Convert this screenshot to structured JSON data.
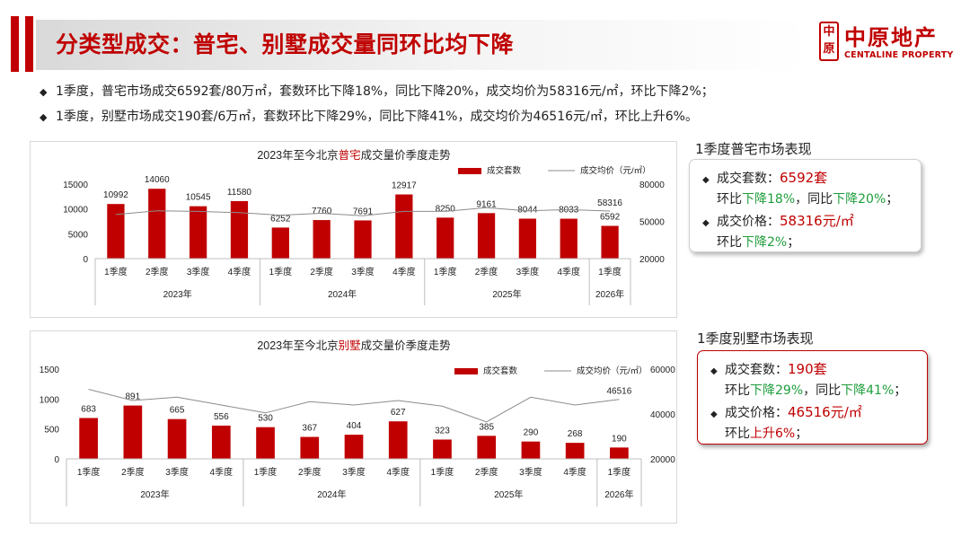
{
  "title": "分类型成交：普宅、别墅成交量同环比均下降",
  "logo": {
    "mark_top": "中",
    "mark_bottom": "原",
    "cn": "中原地产",
    "en": "CENTALINE PROPERTY"
  },
  "bullets": [
    "1季度，普宅市场成交6592套/80万㎡，套数环比下降18%，同比下降20%，成交均价为58316元/㎡，环比下降2%；",
    "1季度，别墅市场成交190套/6万㎡，套数环比下降29%，同比下降41%，成交均价为46516元/㎡，环比上升6%。"
  ],
  "colors": {
    "bar": "#c00000",
    "line": "#8c8c8c",
    "accent": "#c00000",
    "green": "#1e9e3c"
  },
  "panels": {
    "residential": {
      "heading": "1季度普宅市场表现",
      "vol_label": "成交套数：",
      "vol_value": "6592套",
      "vol_chg_a": "环比",
      "vol_chg_a_val": "下降18%",
      "vol_chg_b": "，同比",
      "vol_chg_b_val": "下降20%",
      "vol_chg_end": "；",
      "price_label": "成交价格：",
      "price_value": "58316元/㎡",
      "price_chg": "环比",
      "price_chg_val": "下降2%",
      "price_chg_end": "；"
    },
    "villa": {
      "heading": "1季度别墅市场表现",
      "vol_label": "成交套数：",
      "vol_value": "190套",
      "vol_chg_a": "环比",
      "vol_chg_a_val": "下降29%",
      "vol_chg_b": "，同比",
      "vol_chg_b_val": "下降41%",
      "vol_chg_end": "；",
      "price_label": "成交价格：",
      "price_value": "46516元/㎡",
      "price_chg": "环比",
      "price_chg_val": "上升6%",
      "price_chg_end": "；"
    }
  },
  "chart_data": [
    {
      "type": "bar",
      "title_pre": "2023年至今北京",
      "title_hl": "普宅",
      "title_post": "成交量价季度走势",
      "categories": [
        "1季度",
        "2季度",
        "3季度",
        "4季度",
        "1季度",
        "2季度",
        "3季度",
        "4季度",
        "1季度",
        "2季度",
        "3季度",
        "4季度",
        "1季度"
      ],
      "groups": [
        {
          "label": "2023年",
          "count": 4
        },
        {
          "label": "2024年",
          "count": 4
        },
        {
          "label": "2025年",
          "count": 4
        },
        {
          "label": "2026年",
          "count": 1
        }
      ],
      "series": [
        {
          "name": "成交套数",
          "kind": "bar",
          "axis": "left",
          "values": [
            10992,
            14060,
            10545,
            11580,
            6252,
            7760,
            7691,
            12917,
            8250,
            9161,
            8044,
            8033,
            6592
          ]
        },
        {
          "name": "成交均价（元/㎡）",
          "kind": "line",
          "axis": "right",
          "values": [
            55500,
            58500,
            58000,
            57000,
            55000,
            56500,
            54500,
            58000,
            58000,
            61000,
            58500,
            59500,
            58316
          ],
          "labeled_point": {
            "index": 12,
            "label": "58316"
          }
        }
      ],
      "ylim_left": [
        0,
        15000
      ],
      "yticks_left": [
        0,
        5000,
        10000,
        15000
      ],
      "ylim_right": [
        20000,
        80000
      ],
      "yticks_right": [
        20000,
        50000,
        80000
      ]
    },
    {
      "type": "bar",
      "title_pre": "2023年至今北京",
      "title_hl": "别墅",
      "title_post": "成交量价季度走势",
      "categories": [
        "1季度",
        "2季度",
        "3季度",
        "4季度",
        "1季度",
        "2季度",
        "3季度",
        "4季度",
        "1季度",
        "2季度",
        "3季度",
        "4季度",
        "1季度"
      ],
      "groups": [
        {
          "label": "2023年",
          "count": 4
        },
        {
          "label": "2024年",
          "count": 4
        },
        {
          "label": "2025年",
          "count": 4
        },
        {
          "label": "2026年",
          "count": 1
        }
      ],
      "series": [
        {
          "name": "成交套数",
          "kind": "bar",
          "axis": "left",
          "values": [
            683,
            891,
            665,
            556,
            530,
            367,
            404,
            627,
            323,
            385,
            290,
            268,
            190
          ]
        },
        {
          "name": "成交均价（元/㎡）",
          "kind": "line",
          "axis": "right",
          "values": [
            51000,
            46000,
            47500,
            44000,
            40500,
            45500,
            44000,
            46000,
            43500,
            36500,
            47500,
            44000,
            46516
          ],
          "labeled_point": {
            "index": 12,
            "label": "46516"
          }
        }
      ],
      "ylim_left": [
        0,
        1500
      ],
      "yticks_left": [
        0,
        500,
        1000,
        1500
      ],
      "ylim_right": [
        20000,
        60000
      ],
      "yticks_right": [
        20000,
        40000,
        60000
      ]
    }
  ]
}
